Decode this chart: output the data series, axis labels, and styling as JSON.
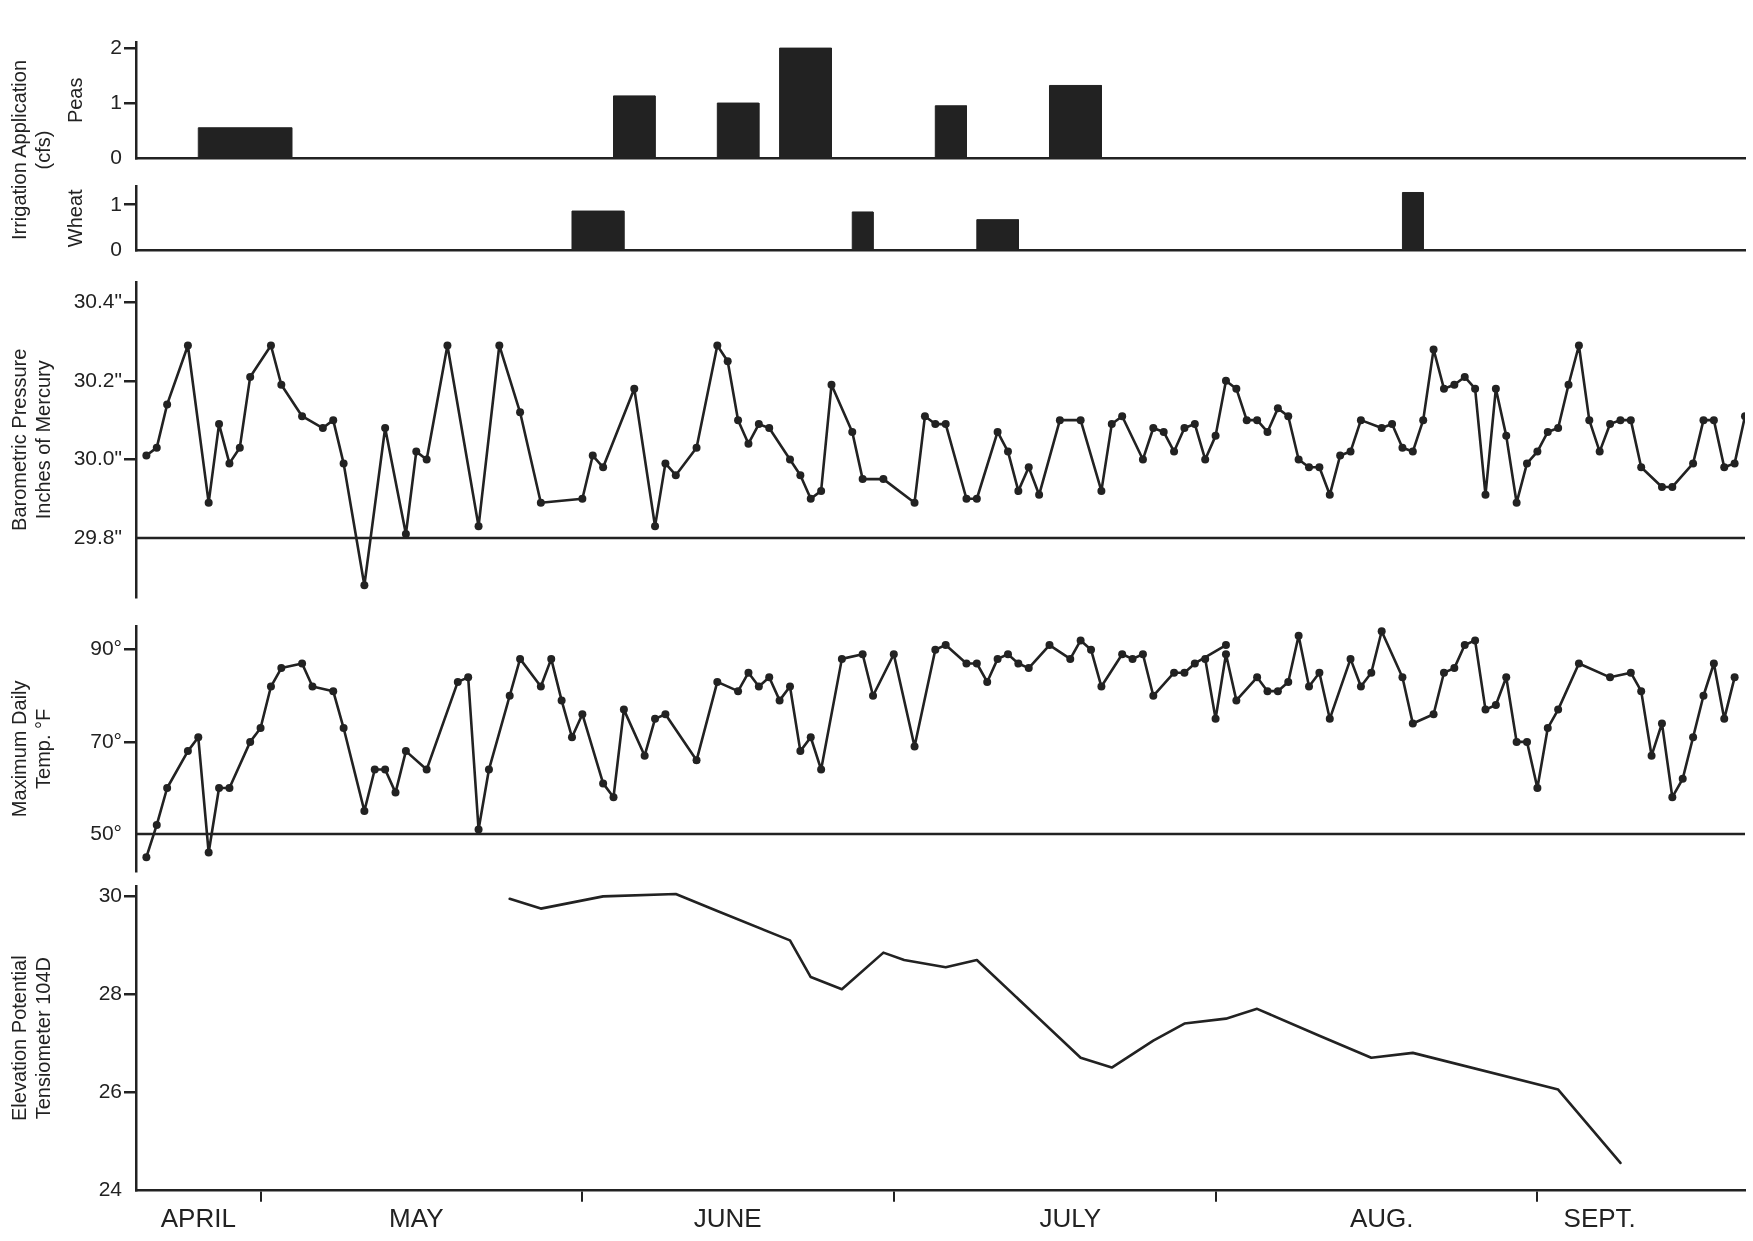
{
  "chart_data": [
    {
      "type": "area",
      "ylabel": "Peas",
      "annotations": [
        "Irrigation Application\n(cfs)"
      ],
      "xlim": [
        "--04-19",
        "--09-21"
      ],
      "ylim": [
        0,
        2.1
      ],
      "yticks": [
        0,
        1,
        2
      ],
      "tick_labels": "y",
      "legend": false,
      "grid": false,
      "series": [
        {
          "color": "#222222",
          "x": [
            "--04-25",
            "--04-25",
            "--05-04",
            "--05-04",
            "--06-04",
            "--06-04",
            "--06-08",
            "--06-08",
            "--06-14",
            "--06-14",
            "--06-18",
            "--06-18",
            "--06-20",
            "--06-20",
            "--06-25",
            "--06-25",
            "--07-05",
            "--07-05",
            "--07-08",
            "--07-08",
            "--07-16",
            "--07-16",
            "--07-21",
            "--07-21"
          ],
          "values": [
            0,
            0.55,
            0.55,
            0,
            0,
            1.13,
            1.13,
            0,
            0,
            1.0,
            1.0,
            0,
            0,
            2.0,
            2.0,
            0,
            0,
            0.95,
            0.95,
            0,
            0,
            1.32,
            1.32,
            0
          ]
        }
      ]
    },
    {
      "type": "area",
      "ylabel": "Wheat",
      "xlim": [
        "--04-19",
        "--09-21"
      ],
      "ylim": [
        0,
        1.4
      ],
      "yticks": [
        0,
        1
      ],
      "tick_labels": "y",
      "legend": false,
      "grid": false,
      "series": [
        {
          "color": "#222222",
          "x": [
            "--05-31",
            "--05-31",
            "--06-05",
            "--06-05",
            "--06-27",
            "--06-27",
            "--06-29",
            "--06-29",
            "--07-09",
            "--07-09",
            "--07-13",
            "--07-13",
            "--08-19",
            "--08-19",
            "--08-21",
            "--08-21"
          ],
          "values": [
            0,
            0.86,
            0.86,
            0,
            0,
            0.84,
            0.84,
            0,
            0,
            0.67,
            0.67,
            0,
            0,
            1.27,
            1.27,
            0
          ]
        }
      ]
    },
    {
      "type": "line",
      "ylabel": "Barometric Pressure\nInches of Mercury",
      "xlim": [
        "--04-19",
        "--09-21"
      ],
      "ylim": [
        29.65,
        30.45
      ],
      "yticks": [
        {
          "value": 29.8,
          "label": "29.8\""
        },
        {
          "value": 30.0,
          "label": "30.0\""
        },
        {
          "value": 30.2,
          "label": "30.2\""
        },
        {
          "value": 30.4,
          "label": "30.4\""
        }
      ],
      "tick_labels": "y",
      "legend": false,
      "grid": false,
      "marker": "circle",
      "line_style": "solid",
      "ref_lines": [
        {
          "axis": "y",
          "value": 29.8
        }
      ],
      "series": [
        {
          "color": "#222222",
          "x": [
            "--04-20",
            "--04-21",
            "--04-22",
            "--04-24",
            "--04-26",
            "--04-27",
            "--04-28",
            "--04-29",
            "--04-30",
            "--05-02",
            "--05-03",
            "--05-05",
            "--05-07",
            "--05-08",
            "--05-09",
            "--05-11",
            "--05-13",
            "--05-15",
            "--05-16",
            "--05-17",
            "--05-19",
            "--05-22",
            "--05-24",
            "--05-26",
            "--05-28",
            "--06-01",
            "--06-02",
            "--06-03",
            "--06-06",
            "--06-08",
            "--06-09",
            "--06-10",
            "--06-12",
            "--06-14",
            "--06-15",
            "--06-16",
            "--06-17",
            "--06-18",
            "--06-19",
            "--06-21",
            "--06-22",
            "--06-23",
            "--06-24",
            "--06-25",
            "--06-27",
            "--06-28",
            "--06-30",
            "--07-03",
            "--07-04",
            "--07-05",
            "--07-06",
            "--07-08",
            "--07-09",
            "--07-11",
            "--07-12",
            "--07-13",
            "--07-14",
            "--07-15",
            "--07-17",
            "--07-19",
            "--07-21",
            "--07-22",
            "--07-23",
            "--07-25",
            "--07-26",
            "--07-27",
            "--07-28",
            "--07-29",
            "--07-30",
            "--07-31",
            "--08-01",
            "--08-02",
            "--08-03",
            "--08-04",
            "--08-05",
            "--08-06",
            "--08-07",
            "--08-08",
            "--08-09",
            "--08-10",
            "--08-11",
            "--08-12",
            "--08-13",
            "--08-14",
            "--08-15",
            "--08-17",
            "--08-18",
            "--08-19",
            "--08-20",
            "--08-21",
            "--08-22",
            "--08-23",
            "--08-24",
            "--08-25",
            "--08-26",
            "--08-27",
            "--08-28",
            "--08-29",
            "--08-30",
            "--08-31",
            "--09-01",
            "--09-02",
            "--09-03",
            "--09-04",
            "--09-05",
            "--09-06",
            "--09-07",
            "--09-08",
            "--09-09",
            "--09-10",
            "--09-11",
            "--09-13",
            "--09-14",
            "--09-16",
            "--09-17",
            "--09-18",
            "--09-19",
            "--09-20",
            "--09-21"
          ],
          "values": [
            30.01,
            30.03,
            30.14,
            30.29,
            29.89,
            30.09,
            29.99,
            30.03,
            30.21,
            30.29,
            30.19,
            30.11,
            30.08,
            30.1,
            29.99,
            29.68,
            30.08,
            29.81,
            30.02,
            30.0,
            30.29,
            29.83,
            30.29,
            30.12,
            29.89,
            29.9,
            30.01,
            29.98,
            30.18,
            29.83,
            29.99,
            29.96,
            30.03,
            30.29,
            30.25,
            30.1,
            30.04,
            30.09,
            30.08,
            30.0,
            29.96,
            29.9,
            29.92,
            30.19,
            30.07,
            29.95,
            29.95,
            29.89,
            30.11,
            30.09,
            30.09,
            29.9,
            29.9,
            30.07,
            30.02,
            29.92,
            29.98,
            29.91,
            30.1,
            30.1,
            29.92,
            30.09,
            30.11,
            30.0,
            30.08,
            30.07,
            30.02,
            30.08,
            30.09,
            30.0,
            30.06,
            30.2,
            30.18,
            30.1,
            30.1,
            30.07,
            30.13,
            30.11,
            30.0,
            29.98,
            29.98,
            29.91,
            30.01,
            30.02,
            30.1,
            30.08,
            30.09,
            30.03,
            30.02,
            30.1,
            30.28,
            30.18,
            30.19,
            30.21,
            30.18,
            29.91,
            30.18,
            30.06,
            29.89,
            29.99,
            30.02,
            30.07,
            30.08,
            30.19,
            30.29,
            30.1,
            30.02,
            30.09,
            30.1,
            30.1,
            29.98,
            29.93,
            29.93,
            29.99,
            30.1,
            30.1,
            29.98,
            29.99,
            30.11
          ]
        }
      ]
    },
    {
      "type": "line",
      "ylabel": "Maximum Daily\nTemp. °F",
      "xlim": [
        "--04-19",
        "--09-21"
      ],
      "ylim": [
        42,
        95
      ],
      "yticks": [
        {
          "value": 50,
          "label": "50°"
        },
        {
          "value": 70,
          "label": "70°"
        },
        {
          "value": 90,
          "label": "90°"
        }
      ],
      "tick_labels": "y",
      "legend": false,
      "grid": false,
      "marker": "circle",
      "line_style": "solid",
      "ref_lines": [
        {
          "axis": "y",
          "value": 50
        }
      ],
      "series": [
        {
          "color": "#222222",
          "x": [
            "--04-20",
            "--04-21",
            "--04-22",
            "--04-24",
            "--04-25",
            "--04-26",
            "--04-27",
            "--04-28",
            "--04-30",
            "--05-01",
            "--05-02",
            "--05-03",
            "--05-05",
            "--05-06",
            "--05-08",
            "--05-09",
            "--05-11",
            "--05-12",
            "--05-13",
            "--05-14",
            "--05-15",
            "--05-17",
            "--05-20",
            "--05-21",
            "--05-22",
            "--05-23",
            "--05-25",
            "--05-26",
            "--05-28",
            "--05-29",
            "--05-30",
            "--05-31",
            "--06-01",
            "--06-03",
            "--06-04",
            "--06-05",
            "--06-07",
            "--06-08",
            "--06-09",
            "--06-12",
            "--06-14",
            "--06-16",
            "--06-17",
            "--06-18",
            "--06-19",
            "--06-20",
            "--06-21",
            "--06-22",
            "--06-23",
            "--06-24",
            "--06-26",
            "--06-28",
            "--06-29",
            "--07-01",
            "--07-03",
            "--07-05",
            "--07-06",
            "--07-08",
            "--07-09",
            "--07-10",
            "--07-11",
            "--07-12",
            "--07-13",
            "--07-14",
            "--07-16",
            "--07-18",
            "--07-19",
            "--07-20",
            "--07-21",
            "--07-23",
            "--07-24",
            "--07-25",
            "--07-26",
            "--07-28",
            "--07-29",
            "--07-30",
            "--08-02"
          ],
          "values": [
            45,
            52,
            60,
            68,
            71,
            46,
            60,
            60,
            70,
            73,
            82,
            86,
            87,
            82,
            81,
            73,
            55,
            64,
            64,
            59,
            68,
            64,
            83,
            84,
            51,
            64,
            80,
            88,
            82,
            88,
            79,
            71,
            76,
            61,
            58,
            77,
            67,
            75,
            76,
            66,
            83,
            81,
            85,
            82,
            84,
            79,
            82,
            68,
            71,
            64,
            88,
            89,
            80,
            89,
            69,
            90,
            91,
            87,
            87,
            83,
            88,
            89,
            87,
            86,
            91,
            88,
            92,
            90,
            82,
            89,
            88,
            89,
            80,
            85,
            85,
            87,
            91
          ]
        },
        {
          "color": "#222222",
          "x": [
            "--07-31",
            "--08-01",
            "--08-02",
            "--08-03",
            "--08-05",
            "--08-06",
            "--08-07",
            "--08-08",
            "--08-09",
            "--08-10",
            "--08-11",
            "--08-12",
            "--08-14",
            "--08-15",
            "--08-16",
            "--08-17",
            "--08-19",
            "--08-20",
            "--08-22",
            "--08-23",
            "--08-24",
            "--08-25",
            "--08-26",
            "--08-27",
            "--08-28",
            "--08-29",
            "--08-30",
            "--08-31",
            "--09-01",
            "--09-02",
            "--09-03",
            "--09-05",
            "--09-08",
            "--09-10",
            "--09-11",
            "--09-12",
            "--09-13",
            "--09-14",
            "--09-15",
            "--09-16",
            "--09-17",
            "--09-18",
            "--09-19",
            "--09-20"
          ],
          "values": [
            88,
            75,
            89,
            79,
            84,
            81,
            81,
            83,
            93,
            82,
            85,
            75,
            88,
            82,
            85,
            94,
            84,
            74,
            76,
            85,
            86,
            91,
            92,
            77,
            78,
            84,
            70,
            70,
            60,
            73,
            77,
            87,
            84,
            85,
            81,
            67,
            74,
            58,
            62,
            71,
            80,
            87,
            75,
            84
          ]
        }
      ]
    },
    {
      "type": "line",
      "ylabel": "Elevation Potential\nTensiometer 104D",
      "xlim": [
        "--04-19",
        "--09-21"
      ],
      "ylim": [
        24,
        30.2
      ],
      "yticks": [
        24,
        26,
        28,
        30
      ],
      "xticks": [
        {
          "value": "--04-25",
          "label": "APRIL"
        },
        {
          "value": "--05-01",
          "label": null
        },
        {
          "value": "--05-16",
          "label": "MAY"
        },
        {
          "value": "--06-01",
          "label": null
        },
        {
          "value": "--06-15",
          "label": "JUNE"
        },
        {
          "value": "--07-01",
          "label": null
        },
        {
          "value": "--07-18",
          "label": "JULY"
        },
        {
          "value": "--08-01",
          "label": null
        },
        {
          "value": "--08-17",
          "label": "AUG."
        },
        {
          "value": "--09-01",
          "label": null
        },
        {
          "value": "--09-07",
          "label": "SEPT."
        }
      ],
      "legend": false,
      "grid": false,
      "marker": "none",
      "line_style": "solid",
      "series": [
        {
          "color": "#222222",
          "x": [
            "--05-25",
            "--05-28",
            "--06-03",
            "--06-10",
            "--06-14",
            "--06-21",
            "--06-23",
            "--06-26",
            "--06-30",
            "--07-02",
            "--07-06",
            "--07-09",
            "--07-19",
            "--07-22",
            "--07-26",
            "--07-29",
            "--08-02",
            "--08-05",
            "--08-11",
            "--08-16",
            "--08-20",
            "--09-03",
            "--09-09"
          ],
          "values": [
            29.95,
            29.75,
            30.0,
            30.05,
            29.7,
            29.1,
            28.35,
            28.1,
            28.85,
            28.7,
            28.55,
            28.7,
            26.7,
            26.5,
            27.05,
            27.4,
            27.5,
            27.7,
            27.15,
            26.7,
            26.8,
            26.05,
            24.55
          ]
        }
      ]
    }
  ]
}
